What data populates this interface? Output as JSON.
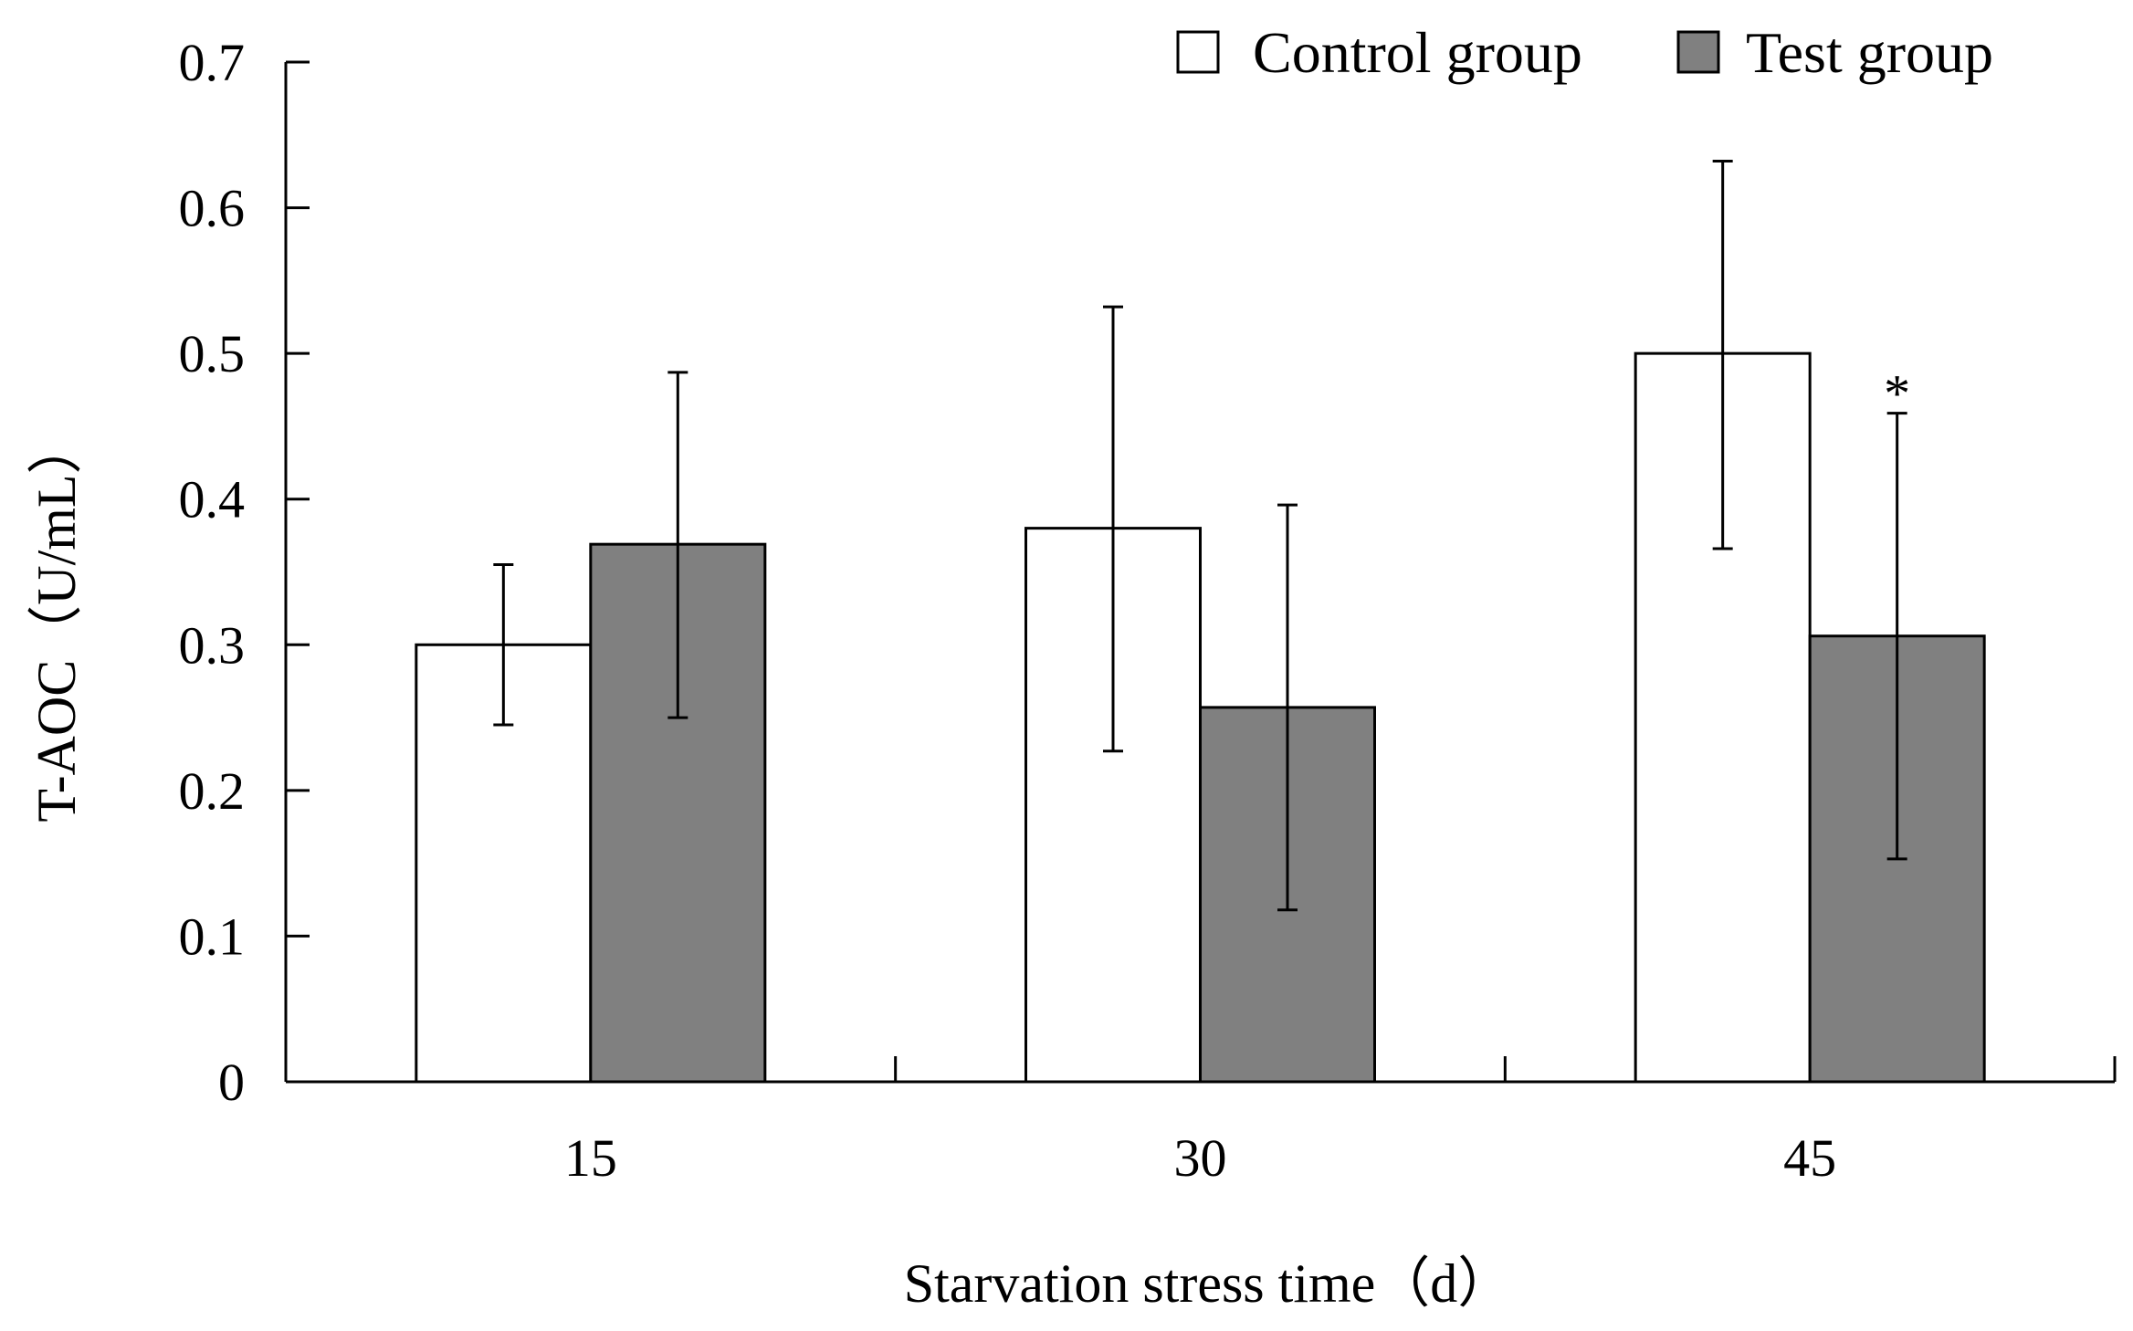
{
  "chart_data": {
    "type": "bar",
    "title": "",
    "xlabel": "Starvation stress time（d）",
    "ylabel": "T-AOC（U/mL）",
    "categories": [
      "15",
      "30",
      "45"
    ],
    "ylim": [
      0,
      0.7
    ],
    "yticks": [
      "0",
      "0.1",
      "0.2",
      "0.3",
      "0.4",
      "0.5",
      "0.6",
      "0.7"
    ],
    "grid": false,
    "legend_position": "top-right",
    "series": [
      {
        "name": "Control group",
        "color": "#ffffff",
        "values": [
          0.3,
          0.38,
          0.5
        ],
        "error_low": [
          0.245,
          0.227,
          0.366
        ],
        "error_high": [
          0.355,
          0.532,
          0.632
        ]
      },
      {
        "name": "Test group",
        "color": "#808080",
        "values": [
          0.369,
          0.257,
          0.306
        ],
        "error_low": [
          0.25,
          0.118,
          0.153
        ],
        "error_high": [
          0.487,
          0.396,
          0.459
        ]
      }
    ],
    "annotations": [
      {
        "text": "*",
        "series": 1,
        "category": 2
      }
    ]
  }
}
